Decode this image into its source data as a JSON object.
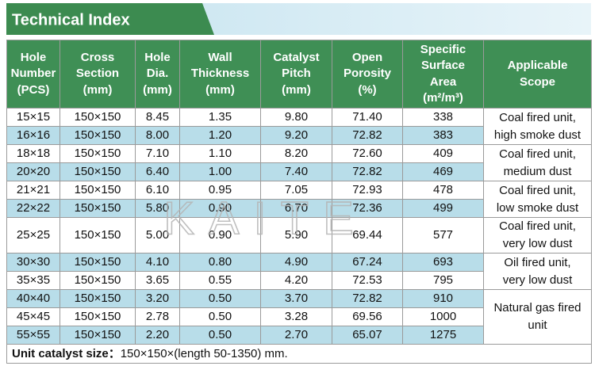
{
  "header": {
    "title": "Technical Index"
  },
  "table": {
    "columns": [
      [
        "Hole",
        "Number",
        "(PCS)"
      ],
      [
        "Cross",
        "Section",
        "(mm)"
      ],
      [
        "Hole",
        "Dia.",
        "(mm)"
      ],
      [
        "Wall",
        "Thickness",
        "(mm)"
      ],
      [
        "Catalyst",
        "Pitch",
        "(mm)"
      ],
      [
        "Open",
        "Porosity",
        "(%)"
      ],
      [
        "Specific",
        "Surface",
        "Area",
        "(m²/m³)"
      ],
      [
        "Applicable",
        "Scope"
      ]
    ],
    "rows": [
      [
        "15×15",
        "150×150",
        "8.45",
        "1.35",
        "9.80",
        "71.40",
        "338"
      ],
      [
        "16×16",
        "150×150",
        "8.00",
        "1.20",
        "9.20",
        "72.82",
        "383"
      ],
      [
        "18×18",
        "150×150",
        "7.10",
        "1.10",
        "8.20",
        "72.60",
        "409"
      ],
      [
        "20×20",
        "150×150",
        "6.40",
        "1.00",
        "7.40",
        "72.82",
        "469"
      ],
      [
        "21×21",
        "150×150",
        "6.10",
        "0.95",
        "7.05",
        "72.93",
        "478"
      ],
      [
        "22×22",
        "150×150",
        "5.80",
        "0.90",
        "6.70",
        "72.36",
        "499"
      ],
      [
        "25×25",
        "150×150",
        "5.00",
        "0.90",
        "5.90",
        "69.44",
        "577"
      ],
      [
        "30×30",
        "150×150",
        "4.10",
        "0.80",
        "4.90",
        "67.24",
        "693"
      ],
      [
        "35×35",
        "150×150",
        "3.65",
        "0.55",
        "4.20",
        "72.53",
        "795"
      ],
      [
        "40×40",
        "150×150",
        "3.20",
        "0.50",
        "3.70",
        "72.82",
        "910"
      ],
      [
        "45×45",
        "150×150",
        "2.78",
        "0.50",
        "3.28",
        "69.56",
        "1000"
      ],
      [
        "55×55",
        "150×150",
        "2.20",
        "0.50",
        "2.70",
        "65.07",
        "1275"
      ]
    ],
    "scopes": [
      [
        "Coal fired unit,",
        "high smoke dust"
      ],
      [
        "Coal fired unit,",
        "medium dust"
      ],
      [
        "Coal fired unit,",
        "low smoke dust"
      ],
      [
        "Coal fired unit,",
        "very low dust"
      ],
      [
        "Oil fired unit,",
        "very low dust"
      ],
      [
        "Natural gas fired",
        "unit"
      ]
    ]
  },
  "footer": {
    "label": "Unit catalyst size：",
    "text": "150×150×(length 50-1350) mm."
  },
  "watermark": "KAITE"
}
